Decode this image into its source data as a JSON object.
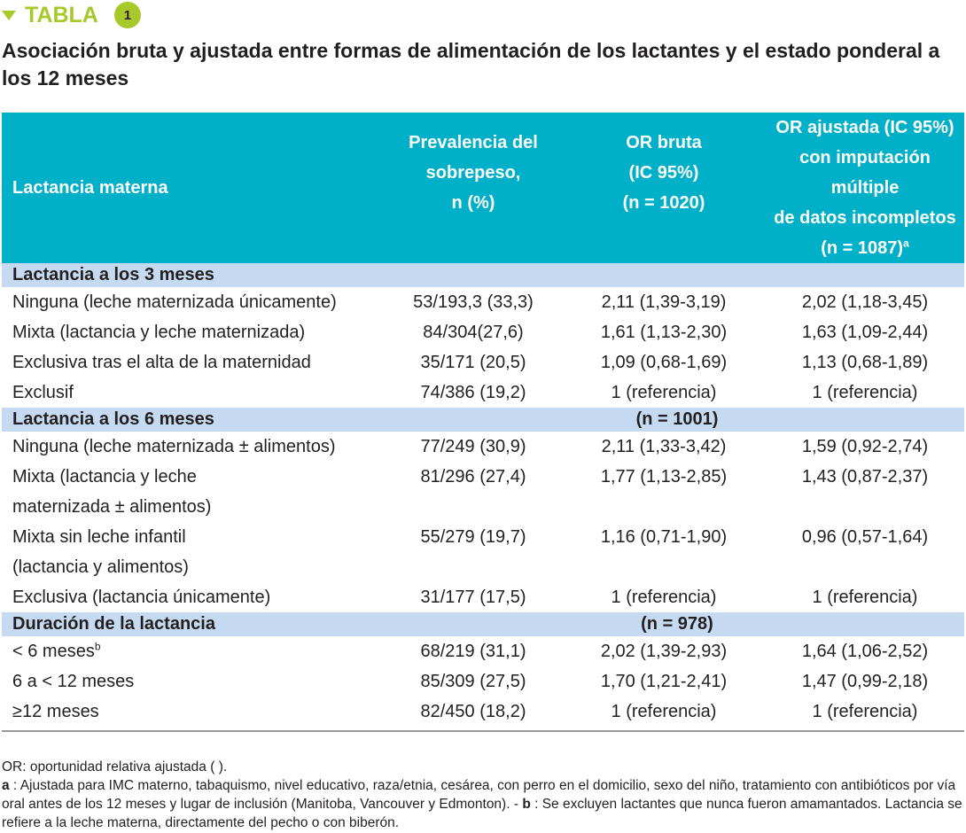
{
  "tag": {
    "label": "TABLA",
    "number": "1",
    "color": "#a7c92a"
  },
  "title": "Asociación bruta y ajustada entre formas de alimentación de los lactantes y el estado ponderal a los 12 meses",
  "colors": {
    "header": "#00b0c8",
    "section": "#c5d9f0"
  },
  "headers": {
    "c1": "Lactancia materna",
    "c2": [
      "Prevalencia del",
      "sobrepeso,",
      "n (%)"
    ],
    "c3": [
      "OR bruta",
      "(IC 95%)",
      "(n = 1020)"
    ],
    "c4": [
      "OR ajustada (IC 95%)",
      "con imputación múltiple",
      "de datos incompletos",
      "(n = 1087)"
    ],
    "c4_sup": "a"
  },
  "sections": [
    {
      "label": "Lactancia a los 3 meses",
      "n": "",
      "rows": [
        {
          "l": [
            "Ninguna (leche maternizada únicamente)"
          ],
          "p": "53/193,3 (33,3)",
          "b": "2,11 (1,39-3,19)",
          "a": "2,02 (1,18-3,45)"
        },
        {
          "l": [
            "Mixta (lactancia y leche maternizada)"
          ],
          "p": "84/304(27,6)",
          "b": "1,61 (1,13-2,30)",
          "a": "1,63 (1,09-2,44)"
        },
        {
          "l": [
            "Exclusiva tras el alta de la maternidad"
          ],
          "p": "35/171 (20,5)",
          "b": "1,09 (0,68-1,69)",
          "a": "1,13 (0,68-1,89)"
        },
        {
          "l": [
            "Exclusif"
          ],
          "p": "74/386 (19,2)",
          "b": "1 (referencia)",
          "a": "1 (referencia)"
        }
      ]
    },
    {
      "label": "Lactancia a los 6 meses",
      "n": "(n = 1001)",
      "rows": [
        {
          "l": [
            "Ninguna (leche maternizada ± alimentos)"
          ],
          "p": "77/249 (30,9)",
          "b": "2,11 (1,33-3,42)",
          "a": "1,59 (0,92-2,74)"
        },
        {
          "l": [
            "Mixta (lactancia y leche",
            "maternizada ± alimentos)"
          ],
          "p": "81/296 (27,4)",
          "b": "1,77 (1,13-2,85)",
          "a": "1,43 (0,87-2,37)"
        },
        {
          "l": [
            "Mixta sin leche infantil",
            "(lactancia y alimentos)"
          ],
          "p": "55/279 (19,7)",
          "b": "1,16 (0,71-1,90)",
          "a": "0,96 (0,57-1,64)"
        },
        {
          "l": [
            "Exclusiva (lactancia únicamente)"
          ],
          "p": "31/177 (17,5)",
          "b": "1 (referencia)",
          "a": "1 (referencia)"
        }
      ]
    },
    {
      "label": "Duración de la lactancia",
      "n": "(n = 978)",
      "rows": [
        {
          "l": [
            "< 6 meses"
          ],
          "sup": "b",
          "p": "68/219 (31,1)",
          "b": "2,02 (1,39-2,93)",
          "a": "1,64 (1,06-2,52)"
        },
        {
          "l": [
            "6 a < 12 meses"
          ],
          "p": "85/309 (27,5)",
          "b": "1,70 (1,21-2,41)",
          "a": "1,47 (0,99-2,18)"
        },
        {
          "l": [
            "≥12 meses"
          ],
          "p": "82/450 (18,2)",
          "b": "1 (referencia)",
          "a": "1 (referencia)"
        }
      ]
    }
  ],
  "footnotes": {
    "or": "OR: oportunidad relativa ajustada ( ).",
    "a_key": "a",
    "a_text": " : Ajustada para IMC materno, tabaquismo, nivel educativo, raza/etnia, cesárea, con perro en el domicilio, sexo del niño, tratamiento con antibióticos por vía oral antes de los 12 meses y lugar de inclusión (Manitoba, Vancouver y Edmonton). - ",
    "b_key": "b",
    "b_text": " : Se excluyen lactantes que nunca fueron amamantados. Lactancia se refiere a la leche materna, directamente del pecho o con biberón."
  }
}
